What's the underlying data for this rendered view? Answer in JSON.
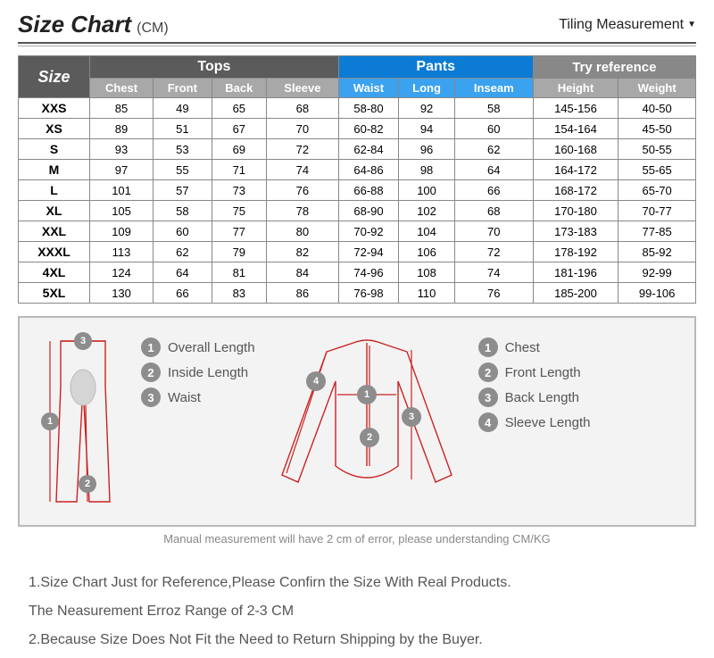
{
  "header": {
    "title": "Size Chart",
    "unit": "(CM)",
    "measurement_link": "Tiling Measurement"
  },
  "table": {
    "group_headers": {
      "size": "Size",
      "tops": "Tops",
      "pants": "Pants",
      "try": "Try reference"
    },
    "sub_headers": {
      "chest": "Chest",
      "front": "Front",
      "back": "Back",
      "sleeve": "Sleeve",
      "waist": "Waist",
      "long": "Long",
      "inseam": "Inseam",
      "height": "Height",
      "weight": "Weight"
    },
    "rows": [
      {
        "size": "XXS",
        "chest": "85",
        "front": "49",
        "back": "65",
        "sleeve": "68",
        "waist": "58-80",
        "long": "92",
        "inseam": "58",
        "height": "145-156",
        "weight": "40-50"
      },
      {
        "size": "XS",
        "chest": "89",
        "front": "51",
        "back": "67",
        "sleeve": "70",
        "waist": "60-82",
        "long": "94",
        "inseam": "60",
        "height": "154-164",
        "weight": "45-50"
      },
      {
        "size": "S",
        "chest": "93",
        "front": "53",
        "back": "69",
        "sleeve": "72",
        "waist": "62-84",
        "long": "96",
        "inseam": "62",
        "height": "160-168",
        "weight": "50-55"
      },
      {
        "size": "M",
        "chest": "97",
        "front": "55",
        "back": "71",
        "sleeve": "74",
        "waist": "64-86",
        "long": "98",
        "inseam": "64",
        "height": "164-172",
        "weight": "55-65"
      },
      {
        "size": "L",
        "chest": "101",
        "front": "57",
        "back": "73",
        "sleeve": "76",
        "waist": "66-88",
        "long": "100",
        "inseam": "66",
        "height": "168-172",
        "weight": "65-70"
      },
      {
        "size": "XL",
        "chest": "105",
        "front": "58",
        "back": "75",
        "sleeve": "78",
        "waist": "68-90",
        "long": "102",
        "inseam": "68",
        "height": "170-180",
        "weight": "70-77"
      },
      {
        "size": "XXL",
        "chest": "109",
        "front": "60",
        "back": "77",
        "sleeve": "80",
        "waist": "70-92",
        "long": "104",
        "inseam": "70",
        "height": "173-183",
        "weight": "77-85"
      },
      {
        "size": "XXXL",
        "chest": "113",
        "front": "62",
        "back": "79",
        "sleeve": "82",
        "waist": "72-94",
        "long": "106",
        "inseam": "72",
        "height": "178-192",
        "weight": "85-92"
      },
      {
        "size": "4XL",
        "chest": "124",
        "front": "64",
        "back": "81",
        "sleeve": "84",
        "waist": "74-96",
        "long": "108",
        "inseam": "74",
        "height": "181-196",
        "weight": "92-99"
      },
      {
        "size": "5XL",
        "chest": "130",
        "front": "66",
        "back": "83",
        "sleeve": "86",
        "waist": "76-98",
        "long": "110",
        "inseam": "76",
        "height": "185-200",
        "weight": "99-106"
      }
    ]
  },
  "diagram": {
    "pants_legend": [
      {
        "num": "1",
        "label": "Overall Length"
      },
      {
        "num": "2",
        "label": "Inside Length"
      },
      {
        "num": "3",
        "label": "Waist"
      }
    ],
    "jersey_legend": [
      {
        "num": "1",
        "label": "Chest"
      },
      {
        "num": "2",
        "label": "Front Length"
      },
      {
        "num": "3",
        "label": "Back Length"
      },
      {
        "num": "4",
        "label": "Sleeve Length"
      }
    ],
    "note": "Manual measurement will have 2 cm of error, please understanding  CM/KG"
  },
  "notes": {
    "n1a": "1.Size Chart Just for Reference,Please Confirn the Size With Real Products.",
    "n1b": "The Neasurement Erroz Range of 2-3 CM",
    "n2": "2.Because Size Does Not Fit the Need to Return Shipping by the Buyer."
  },
  "colors": {
    "dark_header": "#5b5b5b",
    "blue_header": "#0b7bd6",
    "grey_header": "#888888",
    "sub_grey": "#a8a8a8",
    "sub_blue": "#3ba2ef",
    "garment_stroke": "#c22222",
    "badge": "#8d8d8d",
    "diagram_bg": "#f3f3f3"
  }
}
